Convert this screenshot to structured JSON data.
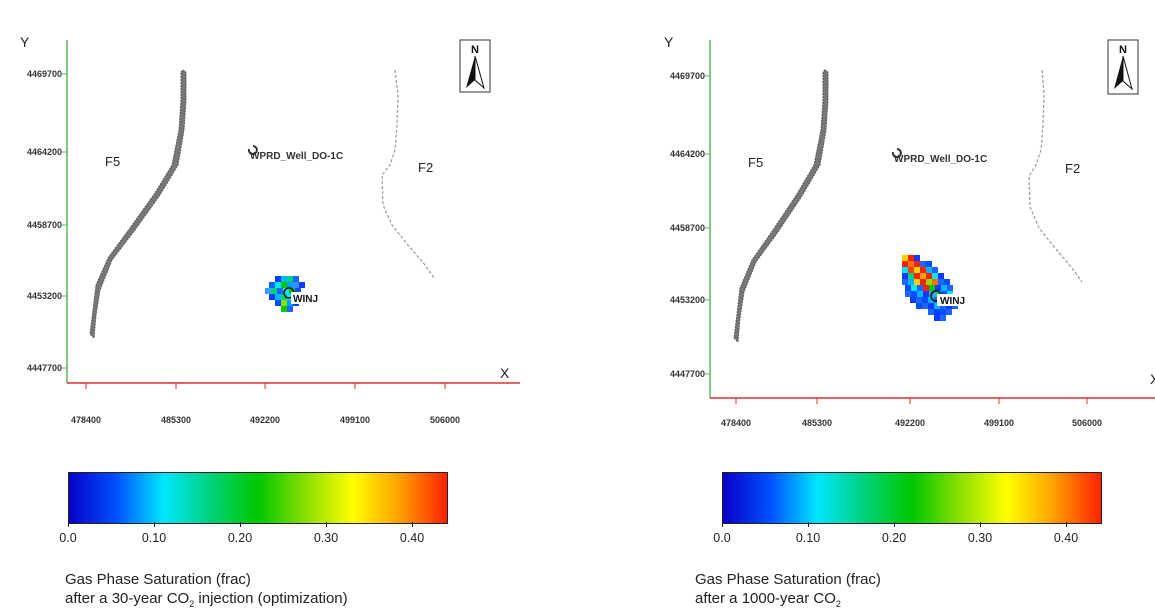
{
  "axes": {
    "y_label": "Y",
    "x_label": "X",
    "y_ticks": [
      "4469700",
      "4464200",
      "4458700",
      "4453200",
      "4447700"
    ],
    "x_ticks": [
      "478400",
      "485300",
      "492200",
      "499100",
      "506000"
    ]
  },
  "map_labels": {
    "fault_west": "F5",
    "fault_east": "F2",
    "monitor_well": "WPRD_Well_DO-1C",
    "injector_well": "WINJ",
    "north": "N"
  },
  "colorbar": {
    "ticks": [
      "0.0",
      "0.10",
      "0.20",
      "0.30",
      "0.40"
    ],
    "min": 0.0,
    "max": 0.44,
    "colors": [
      "#0a00c8",
      "#0050ff",
      "#00e6ff",
      "#00d27a",
      "#00c800",
      "#8ade00",
      "#ffff00",
      "#ffa000",
      "#ff2000"
    ]
  },
  "panels": [
    {
      "title": "Gas Phase Saturation (frac)",
      "subtitle_prefix": "after a 30-year CO",
      "subscript": "2",
      "subtitle_suffix": " injection (optimization)"
    },
    {
      "title": "Gas Phase Saturation (frac)",
      "subtitle_prefix": "after a 1000-year CO",
      "subscript": "2",
      "subtitle_suffix": ""
    }
  ]
}
